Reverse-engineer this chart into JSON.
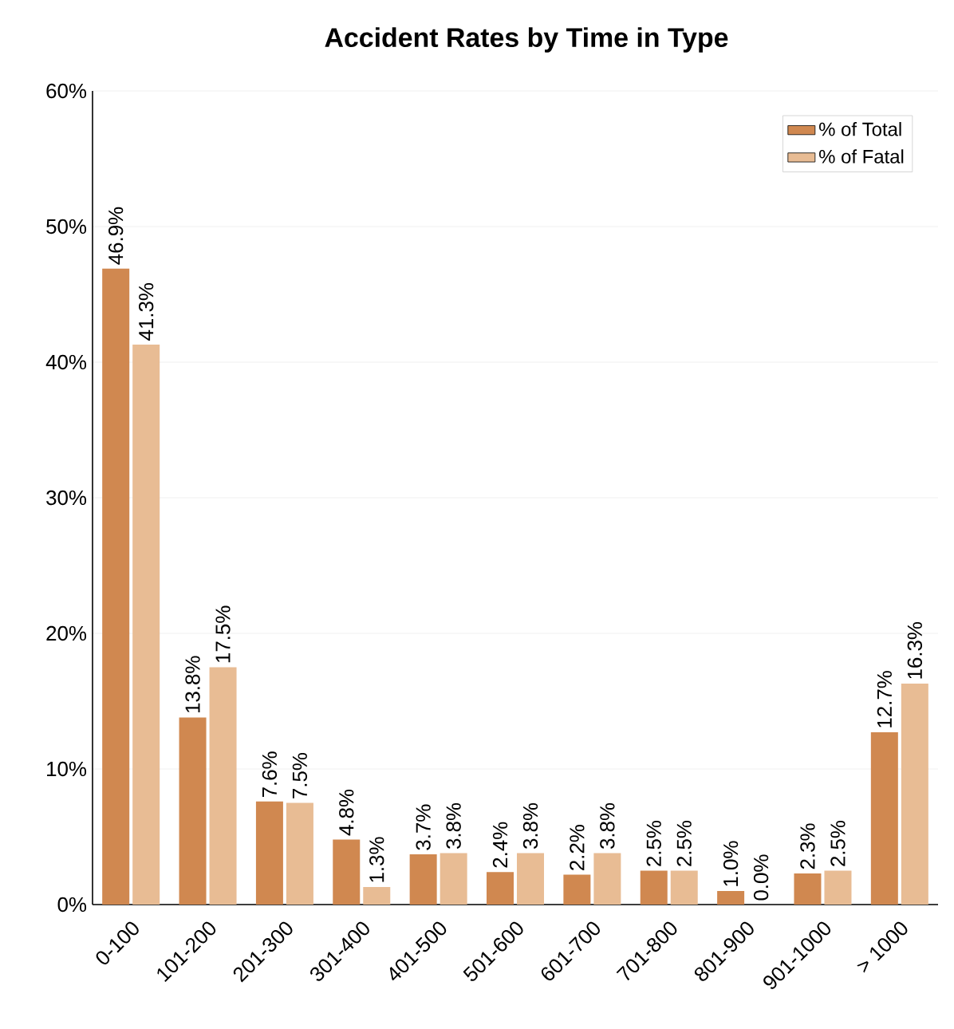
{
  "chart_data": {
    "type": "bar",
    "title": "Accident Rates by Time in Type",
    "categories": [
      "0-100",
      "101-200",
      "201-300",
      "301-400",
      "401-500",
      "501-600",
      "601-700",
      "701-800",
      "801-900",
      "901-1000",
      "> 1000"
    ],
    "series": [
      {
        "name": "% of Total",
        "color": "#d08850",
        "values": [
          46.9,
          13.8,
          7.6,
          4.8,
          3.7,
          2.4,
          2.2,
          2.5,
          1.0,
          2.3,
          12.7
        ],
        "value_labels": [
          "46.9%",
          "13.8%",
          "7.6%",
          "4.8%",
          "3.7%",
          "2.4%",
          "2.2%",
          "2.5%",
          "1.0%",
          "2.3%",
          "12.7%"
        ]
      },
      {
        "name": "% of Fatal",
        "color": "#e8bc94",
        "values": [
          41.3,
          17.5,
          7.5,
          1.3,
          3.8,
          3.8,
          3.8,
          2.5,
          0.0,
          2.5,
          16.3
        ],
        "value_labels": [
          "41.3%",
          "17.5%",
          "7.5%",
          "1.3%",
          "3.8%",
          "3.8%",
          "3.8%",
          "2.5%",
          "0.0%",
          "2.5%",
          "16.3%"
        ]
      }
    ],
    "ylim": [
      0,
      60
    ],
    "yticks": [
      {
        "value": 0,
        "label": "0%"
      },
      {
        "value": 10,
        "label": "10%"
      },
      {
        "value": 20,
        "label": "20%"
      },
      {
        "value": 30,
        "label": "30%"
      },
      {
        "value": 40,
        "label": "40%"
      },
      {
        "value": 50,
        "label": "50%"
      },
      {
        "value": 60,
        "label": "60%"
      }
    ],
    "grid": "y",
    "legend": "top right"
  }
}
